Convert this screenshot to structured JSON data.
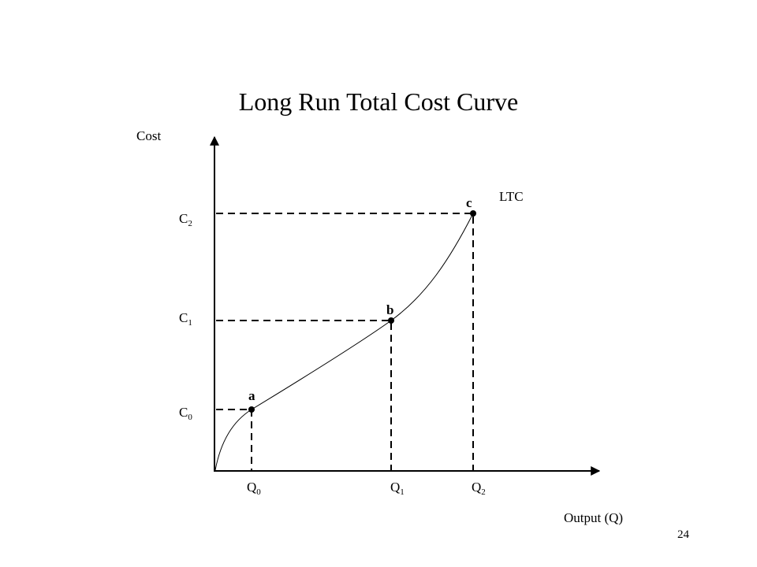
{
  "header": {
    "title": "Long Run Total Cost Curve"
  },
  "axes": {
    "y_label": "Cost",
    "x_label": "Output (Q)"
  },
  "curve": {
    "label": "LTC"
  },
  "points": [
    {
      "label": "a"
    },
    {
      "label": "b"
    },
    {
      "label": "c"
    }
  ],
  "cost_levels": [
    {
      "letter": "C",
      "subscript": "0"
    },
    {
      "letter": "C",
      "subscript": "1"
    },
    {
      "letter": "C",
      "subscript": "2"
    }
  ],
  "output_levels": [
    {
      "letter": "Q",
      "subscript": "0"
    },
    {
      "letter": "Q",
      "subscript": "1"
    },
    {
      "letter": "Q",
      "subscript": "2"
    }
  ],
  "footer": {
    "page_number": "24"
  }
}
